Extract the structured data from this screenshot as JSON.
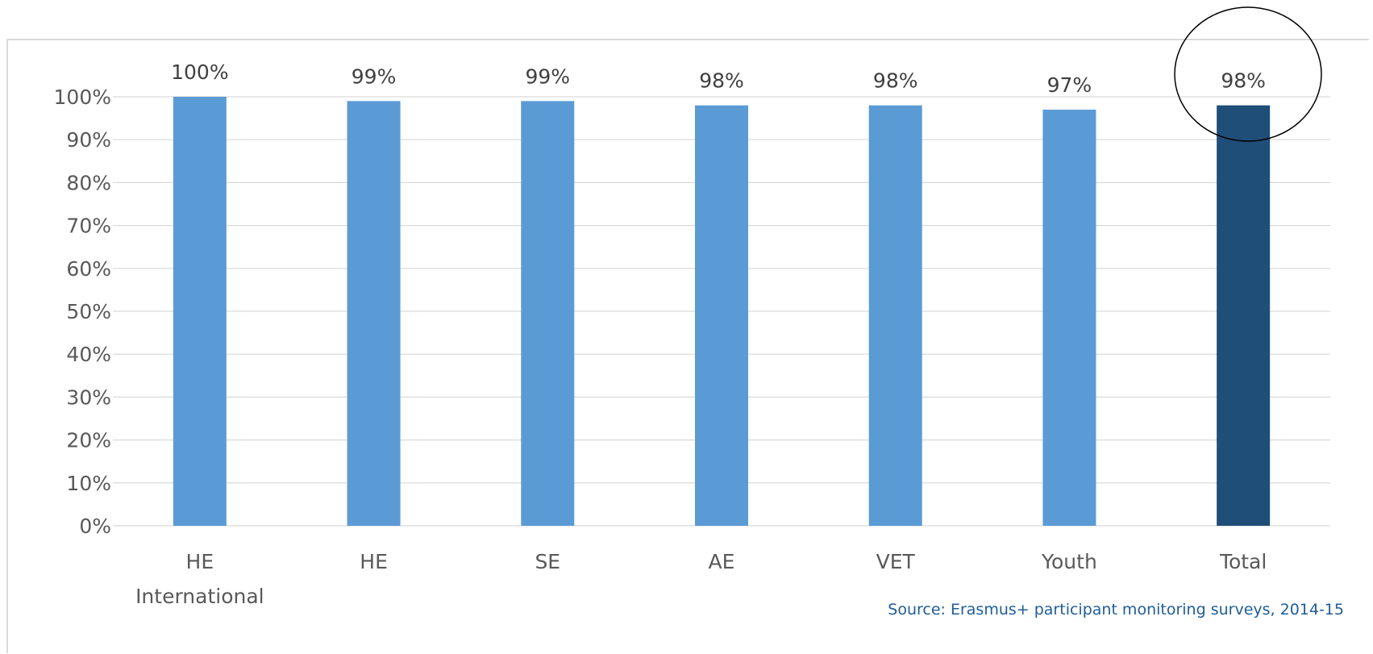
{
  "chart_data": {
    "type": "bar",
    "categories": [
      "HE International",
      "HE",
      "SE",
      "AE",
      "VET",
      "Youth",
      "Total"
    ],
    "category_label_lines": [
      [
        "HE",
        "International"
      ],
      [
        "HE"
      ],
      [
        "SE"
      ],
      [
        "AE"
      ],
      [
        "VET"
      ],
      [
        "Youth"
      ],
      [
        "Total"
      ]
    ],
    "values": [
      100,
      99,
      99,
      98,
      98,
      97,
      98
    ],
    "data_labels": [
      "100%",
      "99%",
      "99%",
      "98%",
      "98%",
      "97%",
      "98%"
    ],
    "highlighted_category": "Total",
    "title": "",
    "xlabel": "",
    "ylabel": "",
    "ylim": [
      0,
      100
    ],
    "yticks": [
      0,
      10,
      20,
      30,
      40,
      50,
      60,
      70,
      80,
      90,
      100
    ],
    "ytick_labels": [
      "0%",
      "10%",
      "20%",
      "30%",
      "40%",
      "50%",
      "60%",
      "70%",
      "80%",
      "90%",
      "100%"
    ],
    "grid": true,
    "legend": "none",
    "annotation": "circle around Total data label",
    "colors": {
      "bar": "#5b9bd5",
      "highlight_bar": "#1f4e79",
      "grid": "#d9d9d9",
      "axis_text": "#595959",
      "source_text": "#1f5d96"
    }
  },
  "source": "Source: Erasmus+ participant monitoring surveys, 2014-15"
}
